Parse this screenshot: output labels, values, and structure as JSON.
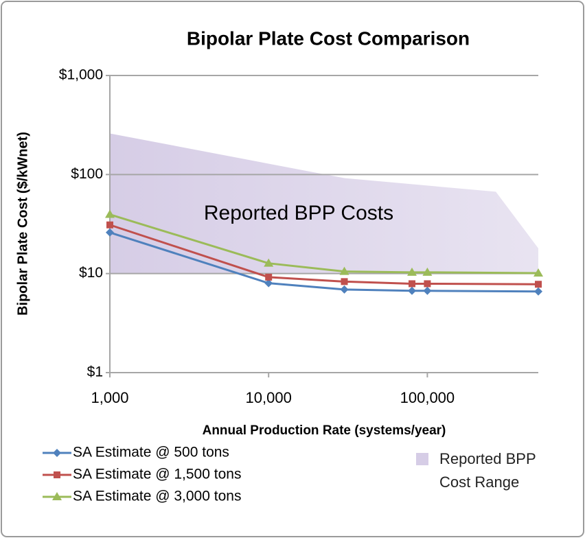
{
  "chart_data": {
    "type": "line",
    "title": "Bipolar Plate Cost Comparison",
    "xlabel": "Annual Production Rate (systems/year)",
    "ylabel": "Bipolar Plate Cost ($/kWnet)",
    "annotation": "Reported BPP Costs",
    "xscale": "log",
    "yscale": "log",
    "xlim": [
      1000,
      500000
    ],
    "ylim": [
      1,
      1000
    ],
    "xticks": [
      {
        "value": 1000,
        "label": "1,000"
      },
      {
        "value": 10000,
        "label": "10,000"
      },
      {
        "value": 100000,
        "label": "100,000"
      }
    ],
    "yticks": [
      {
        "value": 1,
        "label": "$1"
      },
      {
        "value": 10,
        "label": "$10"
      },
      {
        "value": 100,
        "label": "$100"
      },
      {
        "value": 1000,
        "label": "$1,000"
      }
    ],
    "grid": true,
    "x": [
      1000,
      10000,
      30000,
      80000,
      100000,
      500000
    ],
    "series": [
      {
        "name": "SA Estimate @ 500 tons",
        "color": "#4f81bd",
        "marker": "diamond",
        "values": [
          26,
          8,
          6.9,
          6.7,
          6.7,
          6.6
        ]
      },
      {
        "name": "SA Estimate @ 1,500 tons",
        "color": "#c0504d",
        "marker": "square",
        "values": [
          31,
          9.2,
          8.3,
          7.9,
          7.9,
          7.8
        ]
      },
      {
        "name": "SA Estimate @ 3,000 tons",
        "color": "#9bbb59",
        "marker": "triangle",
        "values": [
          39.5,
          12.7,
          10.5,
          10.3,
          10.3,
          10.1
        ]
      }
    ],
    "area": {
      "name": "Reported BPP Cost Range",
      "color": "#d6cde6",
      "x": [
        1000,
        30000,
        270000,
        500000
      ],
      "upper": [
        260,
        92,
        67,
        18
      ],
      "lower": [
        10,
        10,
        10,
        10
      ]
    }
  }
}
